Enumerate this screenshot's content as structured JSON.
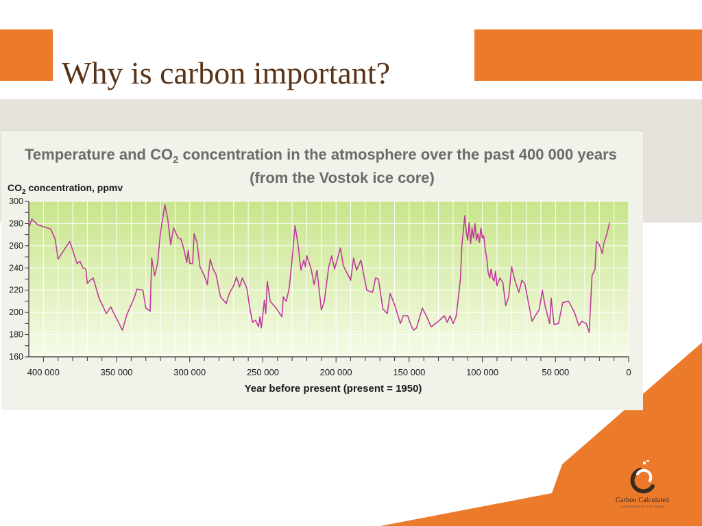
{
  "slide": {
    "title": "Why is carbon important?"
  },
  "colors": {
    "accent": "#ec7a2b",
    "title_text": "#5a3317",
    "series_line": "#c0399a",
    "plot_bg_top": "#c8e58a",
    "plot_bg_bottom": "#f5fbe8"
  },
  "logo": {
    "name": "Carbon Calculated",
    "tagline": "measurement & strategy"
  },
  "chart_data": {
    "type": "line",
    "title_part1": "Temperature and CO",
    "title_sub": "2",
    "title_part2": " concentration in the atmosphere over the past 400 000 years",
    "subtitle": "(from the Vostok ice core)",
    "ylabel_part1": "CO",
    "ylabel_sub": "2",
    "ylabel_part2": " concentration, ppmv",
    "xlabel": "Year before present (present = 1950)",
    "xlim": [
      410000,
      0
    ],
    "ylim": [
      160,
      300
    ],
    "x_ticks": [
      400000,
      350000,
      300000,
      250000,
      200000,
      150000,
      100000,
      50000,
      0
    ],
    "x_tick_labels": [
      "400 000",
      "350 000",
      "300 000",
      "250 000",
      "200 000",
      "150 000",
      "100 000",
      "50 000",
      "0"
    ],
    "y_ticks": [
      160,
      180,
      200,
      220,
      240,
      260,
      280,
      300
    ],
    "y_tick_labels": [
      "160",
      "180",
      "200",
      "220",
      "240",
      "260",
      "280",
      "300"
    ],
    "grid": true,
    "series": [
      {
        "values": [
          [
            410000,
            276
          ],
          [
            408000,
            284
          ],
          [
            404000,
            279
          ],
          [
            395000,
            275
          ],
          [
            392000,
            266
          ],
          [
            390000,
            248
          ],
          [
            387000,
            254
          ],
          [
            382000,
            264
          ],
          [
            377000,
            244
          ],
          [
            375000,
            246
          ],
          [
            373000,
            240
          ],
          [
            371000,
            239
          ],
          [
            370000,
            226
          ],
          [
            368000,
            229
          ],
          [
            366000,
            231
          ],
          [
            362000,
            213
          ],
          [
            357000,
            199
          ],
          [
            354000,
            205
          ],
          [
            351000,
            197
          ],
          [
            346000,
            184
          ],
          [
            343000,
            198
          ],
          [
            338000,
            213
          ],
          [
            336000,
            221
          ],
          [
            332000,
            220
          ],
          [
            330000,
            204
          ],
          [
            327000,
            201
          ],
          [
            326000,
            249
          ],
          [
            324000,
            233
          ],
          [
            322000,
            244
          ],
          [
            320000,
            272
          ],
          [
            317000,
            297
          ],
          [
            315000,
            284
          ],
          [
            313000,
            261
          ],
          [
            311000,
            276
          ],
          [
            308000,
            267
          ],
          [
            306000,
            266
          ],
          [
            304000,
            257
          ],
          [
            302000,
            245
          ],
          [
            301000,
            256
          ],
          [
            300000,
            244
          ],
          [
            298000,
            244
          ],
          [
            297000,
            271
          ],
          [
            295000,
            263
          ],
          [
            293000,
            241
          ],
          [
            290000,
            233
          ],
          [
            288000,
            225
          ],
          [
            286000,
            248
          ],
          [
            284000,
            239
          ],
          [
            282000,
            234
          ],
          [
            279000,
            214
          ],
          [
            275000,
            208
          ],
          [
            273000,
            217
          ],
          [
            270000,
            224
          ],
          [
            268000,
            232
          ],
          [
            266000,
            223
          ],
          [
            264000,
            231
          ],
          [
            261000,
            222
          ],
          [
            259000,
            204
          ],
          [
            257000,
            191
          ],
          [
            255000,
            193
          ],
          [
            253000,
            187
          ],
          [
            252000,
            196
          ],
          [
            251000,
            186
          ],
          [
            249000,
            211
          ],
          [
            248000,
            199
          ],
          [
            247000,
            228
          ],
          [
            245000,
            210
          ],
          [
            241000,
            204
          ],
          [
            237000,
            196
          ],
          [
            236000,
            214
          ],
          [
            234000,
            210
          ],
          [
            232000,
            222
          ],
          [
            230000,
            248
          ],
          [
            228000,
            278
          ],
          [
            226000,
            261
          ],
          [
            224000,
            238
          ],
          [
            222000,
            247
          ],
          [
            221000,
            241
          ],
          [
            220000,
            251
          ],
          [
            217000,
            239
          ],
          [
            215000,
            225
          ],
          [
            213000,
            238
          ],
          [
            210000,
            202
          ],
          [
            208000,
            210
          ],
          [
            205000,
            241
          ],
          [
            203000,
            251
          ],
          [
            201000,
            239
          ],
          [
            197000,
            258
          ],
          [
            195000,
            242
          ],
          [
            190000,
            229
          ],
          [
            188000,
            249
          ],
          [
            186000,
            238
          ],
          [
            183000,
            247
          ],
          [
            179000,
            220
          ],
          [
            175000,
            218
          ],
          [
            173000,
            231
          ],
          [
            171000,
            230
          ],
          [
            168000,
            203
          ],
          [
            165000,
            199
          ],
          [
            163000,
            217
          ],
          [
            160000,
            207
          ],
          [
            156000,
            190
          ],
          [
            154000,
            197
          ],
          [
            151000,
            197
          ],
          [
            149000,
            189
          ],
          [
            147000,
            184
          ],
          [
            145000,
            186
          ],
          [
            141000,
            204
          ],
          [
            138000,
            196
          ],
          [
            135000,
            187
          ],
          [
            130000,
            192
          ],
          [
            126000,
            197
          ],
          [
            124000,
            191
          ],
          [
            122000,
            197
          ],
          [
            120000,
            190
          ],
          [
            118000,
            196
          ],
          [
            117000,
            206
          ],
          [
            115000,
            230
          ],
          [
            114000,
            260
          ],
          [
            112000,
            287
          ],
          [
            111000,
            273
          ],
          [
            110000,
            265
          ],
          [
            109000,
            281
          ],
          [
            108000,
            262
          ],
          [
            107000,
            276
          ],
          [
            106000,
            267
          ],
          [
            105000,
            280
          ],
          [
            104000,
            265
          ],
          [
            103000,
            271
          ],
          [
            102000,
            263
          ],
          [
            101000,
            276
          ],
          [
            100000,
            267
          ],
          [
            99000,
            269
          ],
          [
            98000,
            256
          ],
          [
            97000,
            249
          ],
          [
            96000,
            236
          ],
          [
            95000,
            231
          ],
          [
            94000,
            239
          ],
          [
            93000,
            231
          ],
          [
            92000,
            228
          ],
          [
            91000,
            237
          ],
          [
            90000,
            224
          ],
          [
            88000,
            231
          ],
          [
            86000,
            227
          ],
          [
            84000,
            206
          ],
          [
            82000,
            214
          ],
          [
            80000,
            241
          ],
          [
            78000,
            230
          ],
          [
            75000,
            218
          ],
          [
            73000,
            229
          ],
          [
            71000,
            226
          ],
          [
            66000,
            192
          ],
          [
            61000,
            203
          ],
          [
            59000,
            220
          ],
          [
            57000,
            205
          ],
          [
            54000,
            190
          ],
          [
            53000,
            213
          ],
          [
            51000,
            189
          ],
          [
            48000,
            190
          ],
          [
            45000,
            209
          ],
          [
            41000,
            210
          ],
          [
            37000,
            200
          ],
          [
            34000,
            188
          ],
          [
            32000,
            192
          ],
          [
            29000,
            190
          ],
          [
            27000,
            182
          ],
          [
            25000,
            233
          ],
          [
            23000,
            239
          ],
          [
            22000,
            264
          ],
          [
            20000,
            261
          ],
          [
            18000,
            253
          ],
          [
            17000,
            262
          ],
          [
            15000,
            270
          ],
          [
            13000,
            281
          ]
        ]
      }
    ]
  }
}
